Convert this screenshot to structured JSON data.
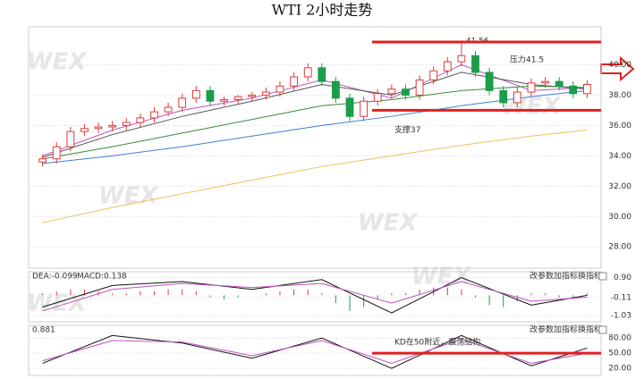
{
  "chart_data": [
    {
      "type": "candlestick",
      "title": "WTI 2小时走势",
      "watermark": "WEX",
      "x": [
        0,
        1,
        2,
        3,
        4,
        5,
        6,
        7,
        8,
        9,
        10,
        11,
        12,
        13,
        14,
        15,
        16,
        17,
        18,
        19,
        20,
        21,
        22,
        23,
        24,
        25,
        26,
        27,
        28,
        29,
        30,
        31,
        32,
        33,
        34,
        35,
        36,
        37,
        38,
        39
      ],
      "open": [
        33.6,
        33.8,
        34.6,
        35.6,
        35.8,
        35.9,
        36.0,
        36.2,
        36.5,
        36.9,
        37.2,
        37.8,
        38.3,
        37.6,
        37.7,
        37.9,
        38.0,
        38.2,
        38.6,
        39.2,
        39.8,
        38.9,
        37.8,
        36.6,
        37.6,
        38.1,
        38.4,
        38.0,
        39.0,
        39.6,
        40.2,
        40.6,
        39.5,
        38.3,
        37.5,
        38.2,
        38.8,
        38.9,
        38.6,
        38.1
      ],
      "high": [
        34.1,
        34.9,
        35.9,
        36.1,
        36.2,
        36.3,
        36.5,
        36.8,
        37.2,
        37.5,
        38.1,
        38.6,
        38.6,
        37.9,
        38.0,
        38.2,
        38.5,
        38.9,
        39.5,
        40.1,
        40.1,
        39.2,
        38.1,
        37.9,
        38.4,
        38.7,
        38.7,
        39.3,
        39.9,
        40.5,
        41.56,
        40.9,
        39.8,
        38.6,
        38.5,
        39.1,
        39.2,
        39.2,
        38.9,
        39.0
      ],
      "low": [
        33.3,
        33.5,
        34.3,
        35.3,
        35.5,
        35.6,
        35.7,
        35.9,
        36.2,
        36.6,
        36.9,
        37.5,
        37.3,
        37.3,
        37.4,
        37.6,
        37.7,
        37.9,
        38.3,
        38.9,
        38.6,
        37.5,
        36.3,
        36.3,
        37.3,
        37.8,
        37.7,
        37.7,
        38.7,
        39.3,
        39.9,
        39.2,
        38.0,
        37.2,
        37.2,
        37.9,
        38.5,
        38.3,
        37.8,
        37.8
      ],
      "close": [
        33.8,
        34.6,
        35.6,
        35.8,
        35.9,
        36.0,
        36.2,
        36.5,
        36.9,
        37.2,
        37.8,
        38.3,
        37.6,
        37.7,
        37.9,
        38.0,
        38.2,
        38.6,
        39.2,
        39.8,
        38.9,
        37.8,
        36.6,
        37.6,
        38.1,
        38.4,
        38.0,
        39.0,
        39.6,
        40.2,
        40.6,
        39.5,
        38.3,
        37.5,
        38.2,
        38.8,
        38.9,
        38.6,
        38.1,
        38.7
      ],
      "up_color": "#e03a3a",
      "down_color": "#1a9e4a",
      "series": [
        {
          "color": "#c050c0",
          "x": [
            0,
            5,
            10,
            15,
            20,
            25,
            30,
            35,
            39
          ],
          "values": [
            34.0,
            35.7,
            37.0,
            37.8,
            39.0,
            37.8,
            40.0,
            38.3,
            38.5
          ]
        },
        {
          "color": "#555555",
          "x": [
            0,
            5,
            10,
            15,
            20,
            25,
            30,
            35,
            39
          ],
          "values": [
            33.9,
            35.4,
            36.6,
            37.6,
            38.7,
            38.0,
            39.5,
            38.7,
            38.4
          ]
        },
        {
          "color": "#3a8a3a",
          "x": [
            0,
            5,
            10,
            15,
            20,
            25,
            30,
            35,
            39
          ],
          "values": [
            33.8,
            34.6,
            35.5,
            36.4,
            37.3,
            37.7,
            38.3,
            38.6,
            38.5
          ]
        },
        {
          "color": "#3f7fcf",
          "x": [
            0,
            5,
            10,
            15,
            20,
            25,
            30,
            35,
            39
          ],
          "values": [
            33.5,
            34.0,
            34.6,
            35.3,
            36.0,
            36.6,
            37.3,
            37.9,
            38.3
          ]
        },
        {
          "color": "#f0c060",
          "x": [
            0,
            5,
            10,
            15,
            20,
            25,
            30,
            35,
            39
          ],
          "values": [
            29.6,
            30.6,
            31.5,
            32.4,
            33.3,
            34.0,
            34.7,
            35.3,
            35.7
          ]
        }
      ],
      "hlines": [
        {
          "value": 41.5,
          "label": "压力41.5",
          "color": "#e02020"
        },
        {
          "value": 37,
          "label": "支撑37",
          "color": "#e02020"
        }
      ],
      "xlim": [
        -1,
        40
      ],
      "ylim": [
        26.6,
        42.5
      ],
      "yticks": [
        {
          "value": 28,
          "label": "28.00"
        },
        {
          "value": 30,
          "label": "30.00"
        },
        {
          "value": 32,
          "label": "32.00"
        },
        {
          "value": 34,
          "label": "34.00"
        },
        {
          "value": 36,
          "label": "36.00"
        },
        {
          "value": 38,
          "label": "38.00"
        },
        {
          "value": 40,
          "label": "40.00"
        }
      ]
    },
    {
      "type": "macd",
      "header": [
        "DEA:-0.099",
        "MACD:0.138"
      ],
      "buttons": [
        "改参数",
        "加指标",
        "换指标"
      ],
      "x": [
        0,
        1,
        2,
        3,
        4,
        5,
        6,
        7,
        8,
        9,
        10,
        11,
        12,
        13,
        14,
        15,
        16,
        17,
        18,
        19,
        20,
        21,
        22,
        23,
        24,
        25,
        26,
        27,
        28,
        29,
        30,
        31,
        32,
        33,
        34,
        35,
        36,
        37,
        38,
        39
      ],
      "values": [
        0.1,
        0.2,
        0.3,
        0.3,
        0.2,
        0.1,
        0.1,
        0.2,
        0.2,
        0.3,
        0.3,
        0.2,
        -0.1,
        -0.2,
        -0.1,
        0.0,
        0.1,
        0.2,
        0.3,
        0.3,
        0.1,
        -0.4,
        -0.8,
        -0.6,
        -0.2,
        0.1,
        0.1,
        0.3,
        0.4,
        0.4,
        0.3,
        -0.1,
        -0.5,
        -0.6,
        -0.3,
        0.1,
        0.1,
        -0.1,
        -0.2,
        0.1
      ],
      "up_color": "#e03a3a",
      "down_color": "#1a9e4a",
      "series": [
        {
          "color": "#111111",
          "x": [
            0,
            5,
            10,
            15,
            20,
            25,
            30,
            35,
            39
          ],
          "values": [
            -0.6,
            0.5,
            0.7,
            0.3,
            0.8,
            -0.9,
            0.9,
            -0.5,
            0.0
          ]
        },
        {
          "color": "#c050c0",
          "x": [
            0,
            5,
            10,
            15,
            20,
            25,
            30,
            35,
            39
          ],
          "values": [
            -0.8,
            0.3,
            0.6,
            0.4,
            0.6,
            -0.4,
            0.7,
            -0.3,
            -0.1
          ]
        }
      ],
      "xlim": [
        -1,
        40
      ],
      "ylim": [
        -1.35,
        1.2
      ],
      "yticks": [
        {
          "value": 0.9,
          "label": "0.90"
        },
        {
          "value": -0.11,
          "label": "-0.11"
        },
        {
          "value": -1.03,
          "label": "-1.03"
        }
      ]
    },
    {
      "type": "line",
      "header": [
        "0.881"
      ],
      "buttons": [
        "改参数",
        "加指标",
        "换指标"
      ],
      "series": [
        {
          "color": "#111111",
          "x": [
            0,
            5,
            10,
            15,
            20,
            25,
            30,
            35,
            39
          ],
          "values": [
            30,
            85,
            70,
            40,
            80,
            20,
            85,
            25,
            60
          ]
        },
        {
          "color": "#c050c0",
          "x": [
            0,
            5,
            10,
            15,
            20,
            25,
            30,
            35,
            39
          ],
          "values": [
            35,
            75,
            72,
            45,
            75,
            30,
            78,
            30,
            50
          ]
        }
      ],
      "hlines": [
        {
          "value": 50,
          "label": "KD在50附近，震荡结构",
          "color": "#e02020"
        }
      ],
      "xlim": [
        -1,
        40
      ],
      "ylim": [
        6,
        105
      ],
      "yticks": [
        {
          "value": 80,
          "label": "80.00"
        },
        {
          "value": 50,
          "label": "50.00"
        },
        {
          "value": 20,
          "label": "20.00"
        }
      ]
    }
  ]
}
